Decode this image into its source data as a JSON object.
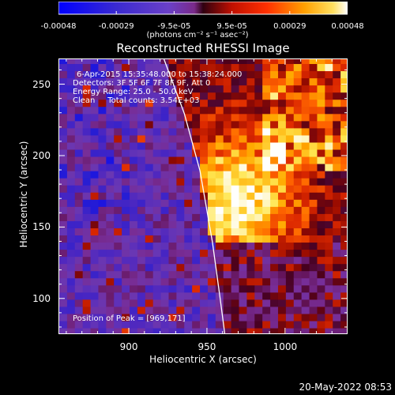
{
  "chart_data": {
    "type": "heatmap",
    "title": "Reconstructed RHESSI Image",
    "xlabel": "Heliocentric X (arcsec)",
    "ylabel": "Heliocentric Y (arcsec)",
    "xlim": [
      855,
      1040
    ],
    "ylim": [
      75,
      268
    ],
    "x_ticks": [
      900,
      950,
      1000
    ],
    "y_ticks": [
      100,
      150,
      200,
      250
    ],
    "colorbar": {
      "min": -0.00048,
      "max": 0.00048,
      "tick_labels": [
        "-0.00048",
        "-0.00029",
        "-9.5e-05",
        "9.5e-05",
        "0.00029",
        "0.00048"
      ],
      "units_label": "(photons cm⁻² s⁻¹ asec⁻²)",
      "colormap": [
        "#0000ff",
        "#3a2ad0",
        "#6a40c8",
        "#7a2a8a",
        "#5a0a2a",
        "#ff2000",
        "#ff9000",
        "#ffe000",
        "#ffffff"
      ]
    },
    "limb_line": [
      [
        922,
        268
      ],
      [
        935,
        230
      ],
      [
        945,
        190
      ],
      [
        953,
        140
      ],
      [
        958,
        100
      ],
      [
        961,
        75
      ]
    ],
    "peak_position": [
      969,
      171
    ],
    "annotations": {
      "time_range": "6-Apr-2015 15:35:48.000 to 15:38:24.000",
      "detectors": "Detectors: 3F 5F 6F 7F 8F 9F, Att 0",
      "energy_range": "Energy Range: 25.0 - 50.0 keV",
      "method": "Clean     Total counts: 3.54E+03",
      "peak_label": "Position of Peak = [969,171]"
    }
  },
  "footer_timestamp": "20-May-2022 08:53"
}
